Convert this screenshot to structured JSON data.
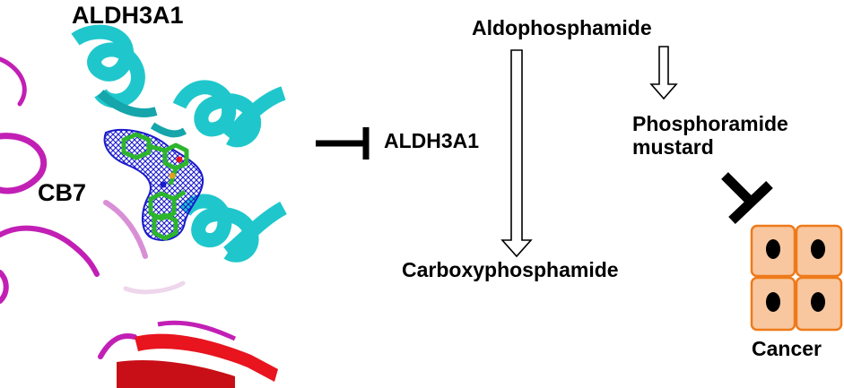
{
  "protein_panel": {
    "title": "ALDH3A1",
    "ligand_label": "CB7"
  },
  "pathway": {
    "inhibited_enzyme": "ALDH3A1",
    "substrate": "Aldophosphamide",
    "inactive_product": "Carboxyphosphamide",
    "active_product_line1": "Phosphoramide",
    "active_product_line2": "mustard",
    "target_label": "Cancer"
  },
  "colors": {
    "helix": "#1fc7cc",
    "coil": "#c21fb5",
    "sheet": "#e8141e",
    "ligand": "#2db52d",
    "density_mesh": "#1a1acc",
    "cell_fill": "#f8c7a0",
    "cell_border": "#ee7a1a",
    "nucleus": "#000000",
    "inhibitor": "#000000"
  },
  "icons": [
    "inhibition-bar-icon",
    "hollow-arrow-down-icon",
    "cancer-cells-icon"
  ]
}
